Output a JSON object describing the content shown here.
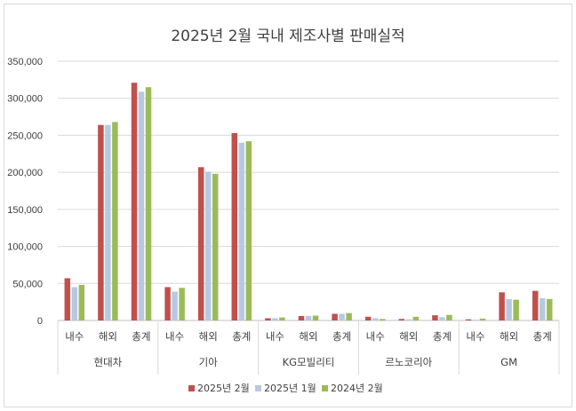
{
  "chart_data": {
    "type": "bar",
    "title": "2025년 2월 국내 제조사별 판매실적",
    "xlabel": "",
    "ylabel": "",
    "ylim": [
      0,
      350000
    ],
    "yticks": [
      0,
      50000,
      100000,
      150000,
      200000,
      250000,
      300000,
      350000
    ],
    "ytick_labels": [
      "0",
      "50,000",
      "100,000",
      "150,000",
      "200,000",
      "250,000",
      "300,000",
      "350,000"
    ],
    "grid": true,
    "legend_position": "bottom",
    "groups": [
      {
        "name": "현대차",
        "categories": [
          "내수",
          "해외",
          "총계"
        ]
      },
      {
        "name": "기아",
        "categories": [
          "내수",
          "해외",
          "총계"
        ]
      },
      {
        "name": "KG모빌리티",
        "categories": [
          "내수",
          "해외",
          "총계"
        ]
      },
      {
        "name": "르노코리아",
        "categories": [
          "내수",
          "해외",
          "총계"
        ]
      },
      {
        "name": "GM",
        "categories": [
          "내수",
          "해외",
          "총계"
        ]
      }
    ],
    "series": [
      {
        "name": "2025년 2월",
        "color": "#c0504d",
        "values": [
          57000,
          264000,
          321000,
          45000,
          207000,
          253000,
          3000,
          6000,
          9000,
          5000,
          2000,
          7000,
          1500,
          38000,
          40000
        ]
      },
      {
        "name": "2025년 1월",
        "color": "#b7c9e2",
        "values": [
          45000,
          264000,
          309000,
          39000,
          201000,
          240000,
          3000,
          6000,
          9000,
          3000,
          1500,
          4500,
          1000,
          29000,
          30000
        ]
      },
      {
        "name": "2024년 2월",
        "color": "#9bbb59",
        "values": [
          48000,
          268000,
          315000,
          44000,
          198000,
          242000,
          4000,
          6500,
          10000,
          2000,
          5000,
          7500,
          2500,
          28000,
          29000
        ]
      }
    ]
  }
}
